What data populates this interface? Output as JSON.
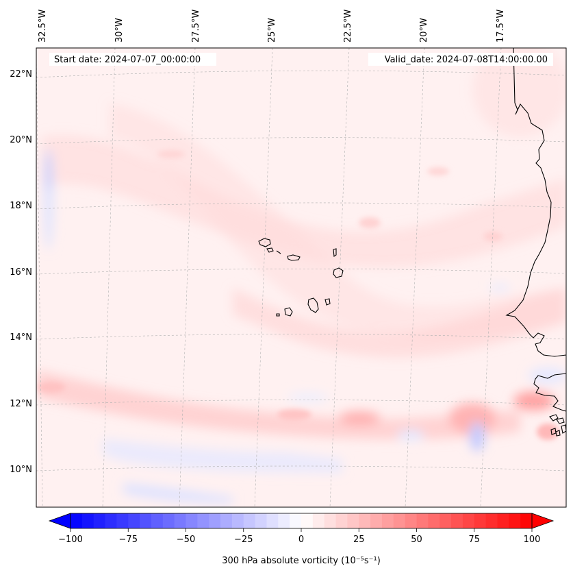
{
  "map": {
    "start_label": "Start date: 2024-07-07_00:00:00",
    "valid_label": "Valid_date: 2024-07-08T14:00:00.00",
    "lon_labels": [
      "32.5°W",
      "30°W",
      "27.5°W",
      "25°W",
      "22.5°W",
      "20°W",
      "17.5°W"
    ],
    "lat_labels": [
      "22°N",
      "20°N",
      "18°N",
      "16°N",
      "14°N",
      "12°N",
      "10°N"
    ],
    "features": [
      "Cape Verde islands",
      "West African coastline"
    ]
  },
  "colorbar": {
    "label": "300 hPa absolute vorticity (10⁻⁵s⁻¹)",
    "ticks": [
      "−100",
      "−75",
      "−50",
      "−25",
      "0",
      "25",
      "50",
      "75",
      "100"
    ],
    "min": -100,
    "max": 100,
    "colormap": "bwr",
    "negative_color": "#0000ff",
    "zero_color": "#ffffff",
    "positive_color": "#ff0000"
  }
}
